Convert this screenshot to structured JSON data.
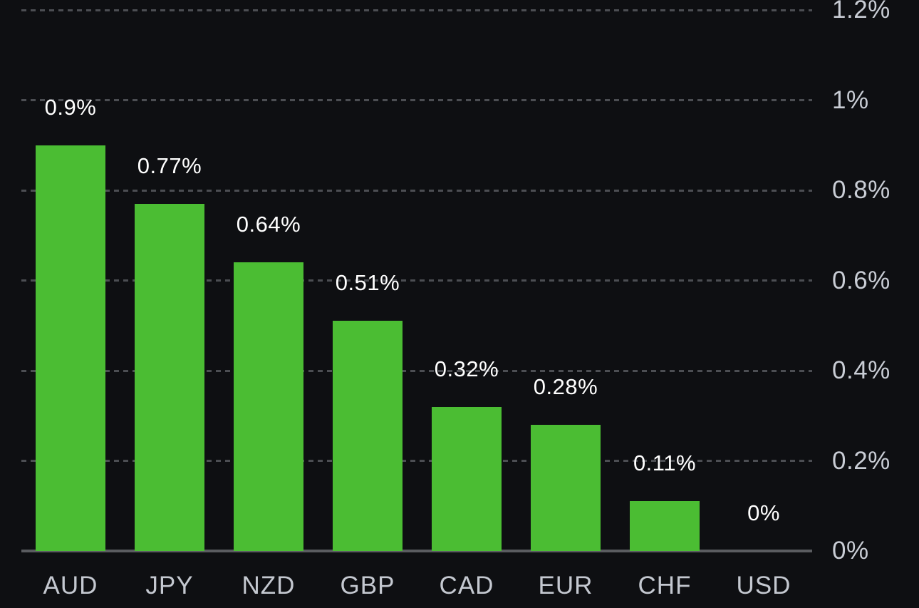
{
  "chart_data": {
    "type": "bar",
    "title": "",
    "xlabel": "",
    "ylabel": "",
    "categories": [
      "AUD",
      "JPY",
      "NZD",
      "GBP",
      "CAD",
      "EUR",
      "CHF",
      "USD"
    ],
    "values": [
      0.9,
      0.77,
      0.64,
      0.51,
      0.32,
      0.28,
      0.11,
      0
    ],
    "value_labels": [
      "0.9%",
      "0.77%",
      "0.64%",
      "0.51%",
      "0.32%",
      "0.28%",
      "0.11%",
      "0%"
    ],
    "ylim": [
      0,
      1.2
    ],
    "y_ticks": [
      {
        "value": 0,
        "label": "0%"
      },
      {
        "value": 0.2,
        "label": "0.2%"
      },
      {
        "value": 0.4,
        "label": "0.4%"
      },
      {
        "value": 0.6,
        "label": "0.6%"
      },
      {
        "value": 0.8,
        "label": "0.8%"
      },
      {
        "value": 1,
        "label": "1%"
      },
      {
        "value": 1.2,
        "label": "1.2%"
      }
    ],
    "y_axis_side": "right",
    "grid": "horizontal-dashed",
    "legend_position": "none",
    "colors": {
      "background": "#0e0f12",
      "bar": "#4bbd33",
      "gridline": "#4c4e53",
      "baseline": "#5a5c60",
      "tick_label": "#c9cdd5",
      "category_label": "#c4c8d0",
      "value_label": "#ffffff"
    }
  }
}
